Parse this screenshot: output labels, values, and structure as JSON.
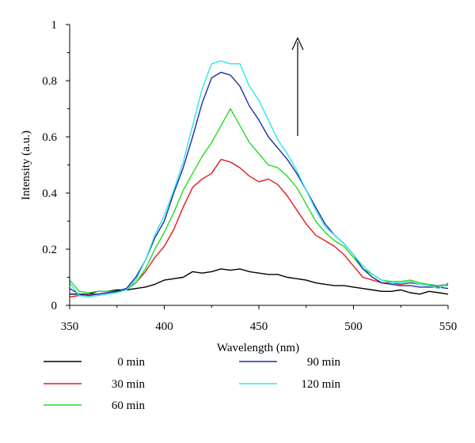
{
  "chart_data": {
    "type": "line",
    "xlabel": "Wavelength (nm)",
    "ylabel": "Intensity (a.u.)",
    "xlim": [
      350,
      550
    ],
    "ylim": [
      0,
      1
    ],
    "x_ticks": [
      350,
      400,
      450,
      500,
      550
    ],
    "y_ticks": [
      0,
      0.2,
      0.4,
      0.6,
      0.8,
      1
    ],
    "y_tick_labels": [
      "0",
      "0.2",
      "0.4",
      "0.6",
      "0.8",
      "1"
    ],
    "grid": false,
    "legend_position": "bottom",
    "annotation": "upward arrow indicating intensity increase over time",
    "x": [
      350,
      355,
      360,
      365,
      370,
      375,
      380,
      385,
      390,
      395,
      400,
      405,
      410,
      415,
      420,
      425,
      430,
      435,
      440,
      445,
      450,
      455,
      460,
      465,
      470,
      475,
      480,
      485,
      490,
      495,
      500,
      505,
      510,
      515,
      520,
      525,
      530,
      535,
      540,
      545,
      550
    ],
    "series": [
      {
        "name": "0 min",
        "color": "#000000",
        "values": [
          0.04,
          0.04,
          0.04,
          0.05,
          0.05,
          0.055,
          0.055,
          0.06,
          0.065,
          0.075,
          0.09,
          0.095,
          0.1,
          0.12,
          0.115,
          0.12,
          0.13,
          0.125,
          0.13,
          0.12,
          0.115,
          0.11,
          0.11,
          0.1,
          0.095,
          0.09,
          0.08,
          0.075,
          0.07,
          0.07,
          0.065,
          0.06,
          0.055,
          0.05,
          0.05,
          0.055,
          0.045,
          0.04,
          0.05,
          0.045,
          0.04
        ]
      },
      {
        "name": "30 min",
        "color": "#e11b1b",
        "values": [
          0.03,
          0.035,
          0.04,
          0.04,
          0.045,
          0.05,
          0.06,
          0.08,
          0.12,
          0.17,
          0.21,
          0.27,
          0.35,
          0.42,
          0.45,
          0.47,
          0.52,
          0.51,
          0.49,
          0.46,
          0.44,
          0.45,
          0.43,
          0.39,
          0.34,
          0.29,
          0.25,
          0.23,
          0.21,
          0.18,
          0.14,
          0.1,
          0.09,
          0.08,
          0.08,
          0.075,
          0.08,
          0.075,
          0.07,
          0.07,
          0.075
        ]
      },
      {
        "name": "60 min",
        "color": "#22dd22",
        "values": [
          0.09,
          0.05,
          0.045,
          0.05,
          0.05,
          0.05,
          0.055,
          0.08,
          0.13,
          0.2,
          0.26,
          0.33,
          0.41,
          0.47,
          0.53,
          0.58,
          0.64,
          0.7,
          0.64,
          0.58,
          0.54,
          0.5,
          0.49,
          0.46,
          0.42,
          0.36,
          0.3,
          0.26,
          0.23,
          0.21,
          0.17,
          0.13,
          0.11,
          0.09,
          0.085,
          0.085,
          0.09,
          0.08,
          0.075,
          0.07,
          0.07
        ]
      },
      {
        "name": "90 min",
        "color": "#1a2ea8",
        "values": [
          0.06,
          0.04,
          0.035,
          0.04,
          0.045,
          0.05,
          0.06,
          0.1,
          0.16,
          0.24,
          0.3,
          0.4,
          0.49,
          0.6,
          0.72,
          0.81,
          0.83,
          0.82,
          0.78,
          0.71,
          0.66,
          0.6,
          0.56,
          0.52,
          0.47,
          0.41,
          0.35,
          0.29,
          0.25,
          0.22,
          0.18,
          0.13,
          0.1,
          0.08,
          0.075,
          0.07,
          0.07,
          0.065,
          0.065,
          0.065,
          0.06
        ]
      },
      {
        "name": "120 min",
        "color": "#2ee6e6",
        "values": [
          0.08,
          0.035,
          0.03,
          0.035,
          0.04,
          0.045,
          0.055,
          0.09,
          0.16,
          0.25,
          0.32,
          0.41,
          0.51,
          0.64,
          0.77,
          0.86,
          0.87,
          0.86,
          0.86,
          0.78,
          0.73,
          0.66,
          0.59,
          0.54,
          0.48,
          0.41,
          0.34,
          0.28,
          0.25,
          0.22,
          0.18,
          0.14,
          0.11,
          0.09,
          0.08,
          0.08,
          0.085,
          0.075,
          0.07,
          0.06,
          0.08
        ]
      }
    ]
  }
}
